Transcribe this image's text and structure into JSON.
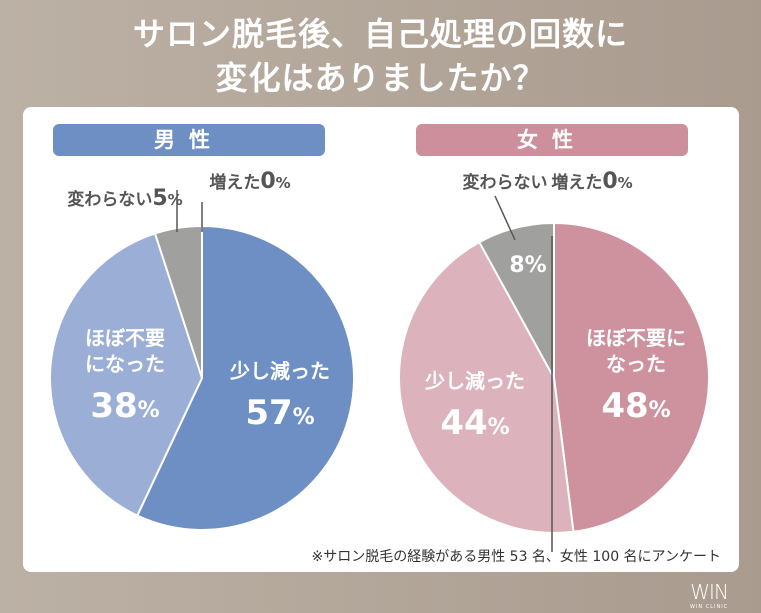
{
  "title_line1": "サロン脱毛後、自己処理の回数に",
  "title_line2": "変化はありましたか？",
  "note": "※サロン脱毛の経験がある男性 53 名、女性 100 名にアンケート",
  "logo": {
    "mark": "WIN",
    "sub": "WIN CLINIC"
  },
  "chart_data": [
    {
      "type": "pie",
      "title": "男性",
      "header_color": "#6e8fc4",
      "slices": [
        {
          "label": "少し減った",
          "value": 57,
          "color": "#6d8fc3"
        },
        {
          "label": "ほぼ不要になった",
          "value": 38,
          "color": "#9aaed6"
        },
        {
          "label": "変わらない",
          "value": 5,
          "color": "#a0a09f"
        },
        {
          "label": "増えた",
          "value": 0,
          "color": "#888888"
        }
      ]
    },
    {
      "type": "pie",
      "title": "女性",
      "header_color": "#cc8f9b",
      "slices": [
        {
          "label": "ほぼ不要になった",
          "value": 48,
          "color": "#cd929d"
        },
        {
          "label": "少し減った",
          "value": 44,
          "color": "#dcb3bc"
        },
        {
          "label": "変わらない",
          "value": 8,
          "color": "#a0a09f"
        },
        {
          "label": "増えた",
          "value": 0,
          "color": "#888888"
        }
      ]
    }
  ]
}
